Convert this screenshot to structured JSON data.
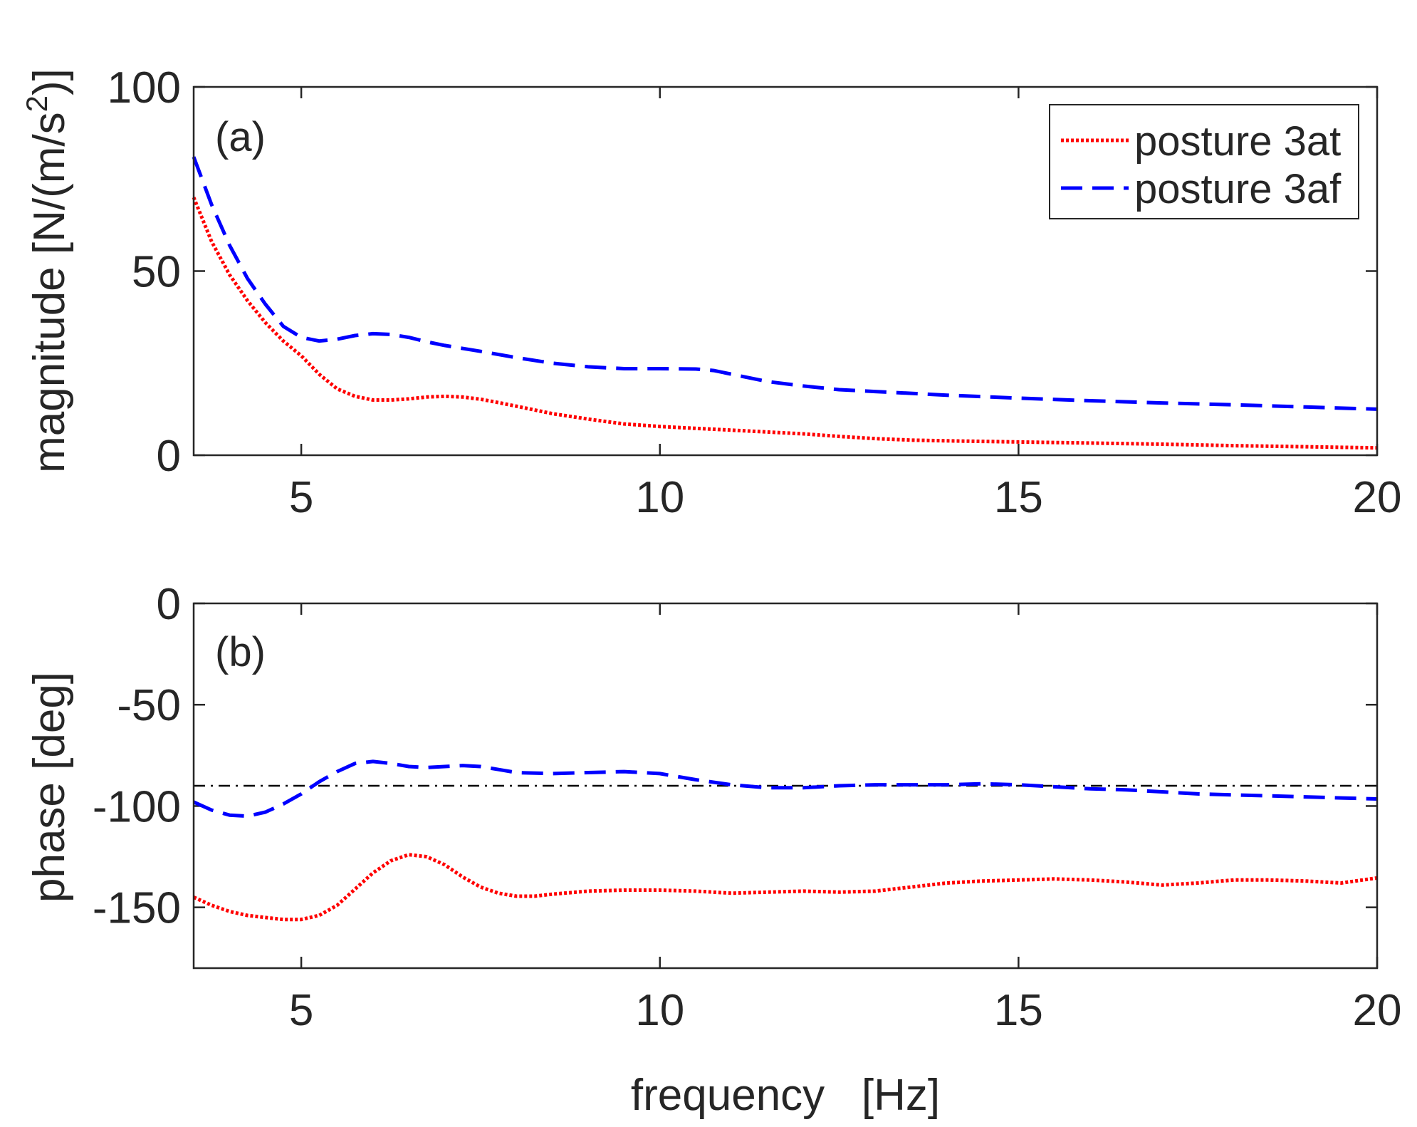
{
  "chart_data": [
    {
      "type": "line",
      "panel_label": "(a)",
      "title": "",
      "xlabel": "",
      "ylabel_main": "magnitude [N/(m/s",
      "ylabel_sup": "2",
      "ylabel_end": ")]",
      "xlim": [
        3.5,
        20
      ],
      "ylim": [
        0,
        100
      ],
      "xticks": [
        5,
        10,
        15,
        20
      ],
      "yticks": [
        0,
        50,
        100
      ],
      "legend": {
        "position": "top-right"
      },
      "series": [
        {
          "name": "posture 3at",
          "color": "#ff0000",
          "style": "dotted",
          "x": [
            3.5,
            3.75,
            4.0,
            4.25,
            4.5,
            4.75,
            5.0,
            5.25,
            5.5,
            5.75,
            6.0,
            6.25,
            6.5,
            6.75,
            7.0,
            7.25,
            7.5,
            7.75,
            8.0,
            8.25,
            8.5,
            9.0,
            9.5,
            10.0,
            10.5,
            11.0,
            11.5,
            12.0,
            12.5,
            13.0,
            13.5,
            14.0,
            15.0,
            16.0,
            17.0,
            18.0,
            19.0,
            20.0
          ],
          "y": [
            70,
            58,
            49,
            42,
            36,
            31,
            27,
            22,
            18,
            16,
            15,
            15,
            15.3,
            15.8,
            16,
            15.8,
            15.2,
            14.3,
            13.3,
            12.3,
            11.3,
            9.8,
            8.5,
            7.8,
            7.3,
            6.8,
            6.3,
            5.8,
            5.1,
            4.5,
            4.1,
            3.9,
            3.6,
            3.3,
            3.0,
            2.6,
            2.3,
            2.0
          ]
        },
        {
          "name": "posture 3af",
          "color": "#0000ff",
          "style": "dashed",
          "x": [
            3.5,
            3.75,
            4.0,
            4.25,
            4.5,
            4.75,
            5.0,
            5.25,
            5.5,
            5.75,
            6.0,
            6.25,
            6.5,
            6.75,
            7.0,
            7.5,
            8.0,
            8.5,
            9.0,
            9.5,
            10.0,
            10.5,
            10.75,
            11.0,
            11.5,
            12.0,
            12.5,
            13.0,
            14.0,
            15.0,
            16.0,
            17.0,
            18.0,
            19.0,
            20.0
          ],
          "y": [
            81,
            68,
            57,
            48,
            41,
            35,
            32,
            31,
            31.5,
            32.5,
            33,
            32.8,
            32,
            30.8,
            29.8,
            28.2,
            26.5,
            25,
            24,
            23.5,
            23.5,
            23.4,
            23,
            22,
            20,
            18.8,
            17.8,
            17.3,
            16.3,
            15.5,
            14.8,
            14.2,
            13.7,
            13.1,
            12.5
          ]
        }
      ]
    },
    {
      "type": "line",
      "panel_label": "(b)",
      "title": "",
      "xlabel": "frequency   [Hz]",
      "ylabel": "phase [deg]",
      "xlim": [
        3.5,
        20
      ],
      "ylim": [
        -180,
        0
      ],
      "xticks": [
        5,
        10,
        15,
        20
      ],
      "yticks": [
        0,
        -50,
        -100,
        -150
      ],
      "reference_line": {
        "y": -90,
        "color": "#000000",
        "style": "dash-dot"
      },
      "series": [
        {
          "name": "posture 3at",
          "color": "#ff0000",
          "style": "dotted",
          "x": [
            3.5,
            3.75,
            4.0,
            4.25,
            4.5,
            4.75,
            5.0,
            5.25,
            5.5,
            5.75,
            6.0,
            6.25,
            6.5,
            6.75,
            7.0,
            7.25,
            7.5,
            7.75,
            8.0,
            8.25,
            8.5,
            9.0,
            9.5,
            10.0,
            10.5,
            11.0,
            11.5,
            12.0,
            12.5,
            13.0,
            13.5,
            14.0,
            14.5,
            15.0,
            15.5,
            16.0,
            16.5,
            17.0,
            17.5,
            18.0,
            18.5,
            19.0,
            19.5,
            20.0
          ],
          "y": [
            -145,
            -149,
            -152,
            -154,
            -155,
            -156,
            -156,
            -154,
            -149,
            -141,
            -133,
            -127,
            -124,
            -125,
            -129,
            -135,
            -140,
            -143,
            -144.5,
            -144.5,
            -143.5,
            -142,
            -141.5,
            -141.5,
            -142,
            -143,
            -142.5,
            -142,
            -142.5,
            -142,
            -140,
            -138,
            -137,
            -136.5,
            -136,
            -136.5,
            -137.5,
            -139,
            -138,
            -136.5,
            -136.5,
            -137,
            -138,
            -135.5
          ]
        },
        {
          "name": "posture 3af",
          "color": "#0000ff",
          "style": "dashed",
          "x": [
            3.5,
            3.75,
            4.0,
            4.25,
            4.5,
            4.75,
            5.0,
            5.25,
            5.5,
            5.75,
            6.0,
            6.25,
            6.5,
            6.75,
            7.0,
            7.25,
            7.5,
            7.75,
            8.0,
            8.5,
            9.0,
            9.5,
            10.0,
            10.5,
            11.0,
            11.5,
            12.0,
            12.5,
            13.0,
            13.5,
            14.0,
            14.5,
            15.0,
            15.5,
            16.0,
            16.5,
            17.0,
            17.5,
            18.0,
            18.5,
            19.0,
            19.5,
            20.0
          ],
          "y": [
            -98,
            -102,
            -104.5,
            -105,
            -103,
            -99,
            -94,
            -88,
            -83,
            -79,
            -78,
            -79,
            -80.5,
            -81,
            -80.5,
            -80,
            -80.5,
            -82,
            -83.5,
            -84,
            -83.5,
            -83,
            -84,
            -87,
            -89.5,
            -91,
            -91,
            -90,
            -89.5,
            -89.5,
            -89.5,
            -89,
            -89.5,
            -90.5,
            -91.5,
            -92,
            -93,
            -94,
            -94.5,
            -95,
            -95.5,
            -96,
            -96.5
          ]
        }
      ]
    }
  ]
}
